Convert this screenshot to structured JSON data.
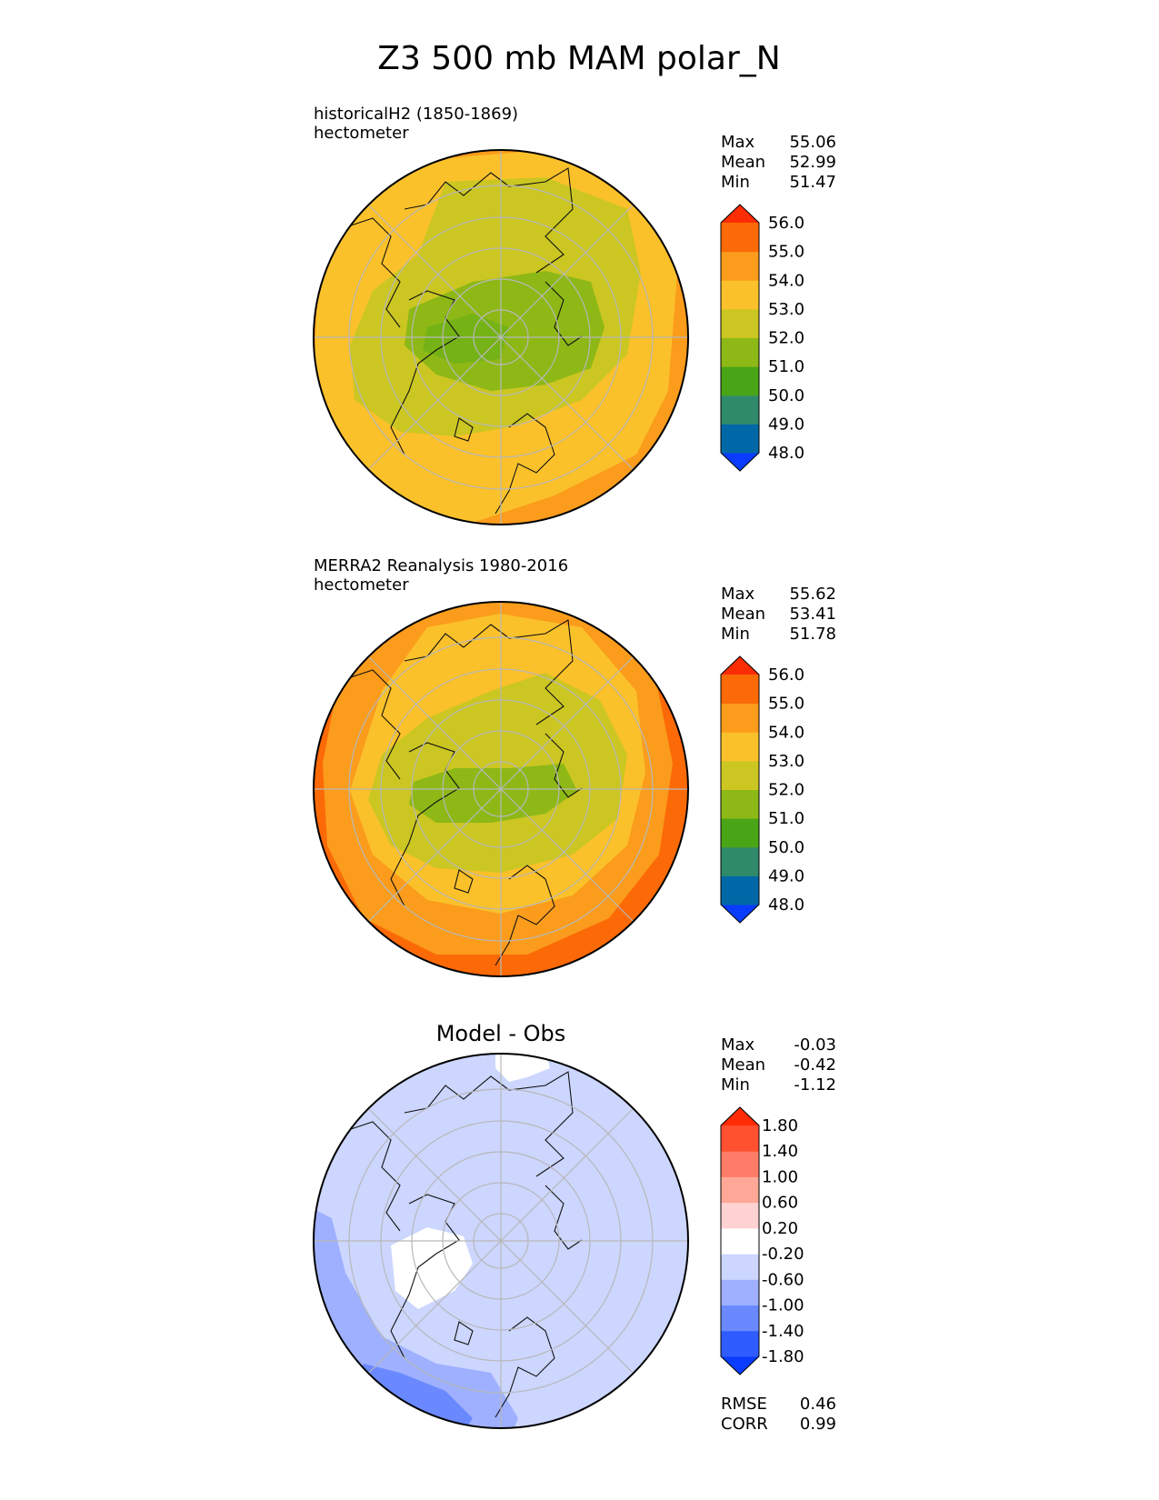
{
  "title": "Z3 500 mb MAM polar_N",
  "panels": [
    {
      "id": "test",
      "heading": "historicalH2 (1850-1869)",
      "units": "hectometer",
      "stats": [
        {
          "label": "Max",
          "value": "55.06"
        },
        {
          "label": "Mean",
          "value": "52.99"
        },
        {
          "label": "Min",
          "value": "51.47"
        }
      ],
      "colorbar": {
        "tick_labels": [
          "48.0",
          "49.0",
          "50.0",
          "51.0",
          "52.0",
          "53.0",
          "54.0",
          "55.0",
          "56.0"
        ],
        "colors": [
          "#0a3cff",
          "#0068a6",
          "#2f8a6a",
          "#4aa516",
          "#8db816",
          "#cbc622",
          "#fbc12a",
          "#fb9c1c",
          "#fc6a07",
          "#fc2c05"
        ]
      },
      "levels_center_to_edge": [
        "51.0",
        "52.0",
        "53.0",
        "54.0",
        "55.0"
      ]
    },
    {
      "id": "ref",
      "heading": "MERRA2 Reanalysis 1980-2016",
      "units": "hectometer",
      "stats": [
        {
          "label": "Max",
          "value": "55.62"
        },
        {
          "label": "Mean",
          "value": "53.41"
        },
        {
          "label": "Min",
          "value": "51.78"
        }
      ],
      "colorbar": {
        "tick_labels": [
          "48.0",
          "49.0",
          "50.0",
          "51.0",
          "52.0",
          "53.0",
          "54.0",
          "55.0",
          "56.0"
        ],
        "colors": [
          "#0a3cff",
          "#0068a6",
          "#2f8a6a",
          "#4aa516",
          "#8db816",
          "#cbc622",
          "#fbc12a",
          "#fb9c1c",
          "#fc6a07",
          "#fc2c05"
        ]
      },
      "levels_center_to_edge": [
        "51.0",
        "52.0",
        "53.0",
        "54.0",
        "55.0"
      ]
    },
    {
      "id": "diff",
      "heading": "Model - Obs",
      "stats": [
        {
          "label": "Max",
          "value": "-0.03"
        },
        {
          "label": "Mean",
          "value": "-0.42"
        },
        {
          "label": "Min",
          "value": "-1.12"
        }
      ],
      "colorbar": {
        "tick_labels": [
          "-1.80",
          "-1.40",
          "-1.00",
          "-0.60",
          "-0.20",
          "0.20",
          "0.60",
          "1.00",
          "1.40",
          "1.80"
        ],
        "colors": [
          "#0a3cff",
          "#2f5cff",
          "#6a89ff",
          "#9eb0ff",
          "#ccd6ff",
          "#ffffff",
          "#ffd2d2",
          "#ffa898",
          "#ff7d68",
          "#ff5030",
          "#ff2c05"
        ]
      },
      "footer_stats": [
        {
          "label": "RMSE",
          "value": "0.46"
        },
        {
          "label": "CORR",
          "value": "0.99"
        }
      ]
    }
  ],
  "chart_data": [
    {
      "type": "heatmap",
      "title": "historicalH2 (1850-1869)",
      "projection": "north polar stereographic",
      "variable": "Z3 500 mb MAM",
      "units": "hectometer",
      "max": 55.06,
      "mean": 52.99,
      "min": 51.47,
      "contour_levels": [
        48,
        49,
        50,
        51,
        52,
        53,
        54,
        55,
        56
      ]
    },
    {
      "type": "heatmap",
      "title": "MERRA2 Reanalysis 1980-2016",
      "projection": "north polar stereographic",
      "variable": "Z3 500 mb MAM",
      "units": "hectometer",
      "max": 55.62,
      "mean": 53.41,
      "min": 51.78,
      "contour_levels": [
        48,
        49,
        50,
        51,
        52,
        53,
        54,
        55,
        56
      ]
    },
    {
      "type": "heatmap",
      "title": "Model - Obs",
      "projection": "north polar stereographic",
      "max": -0.03,
      "mean": -0.42,
      "min": -1.12,
      "rmse": 0.46,
      "corr": 0.99,
      "contour_levels": [
        -1.8,
        -1.4,
        -1.0,
        -0.6,
        -0.2,
        0.2,
        0.6,
        1.0,
        1.4,
        1.8
      ]
    }
  ]
}
